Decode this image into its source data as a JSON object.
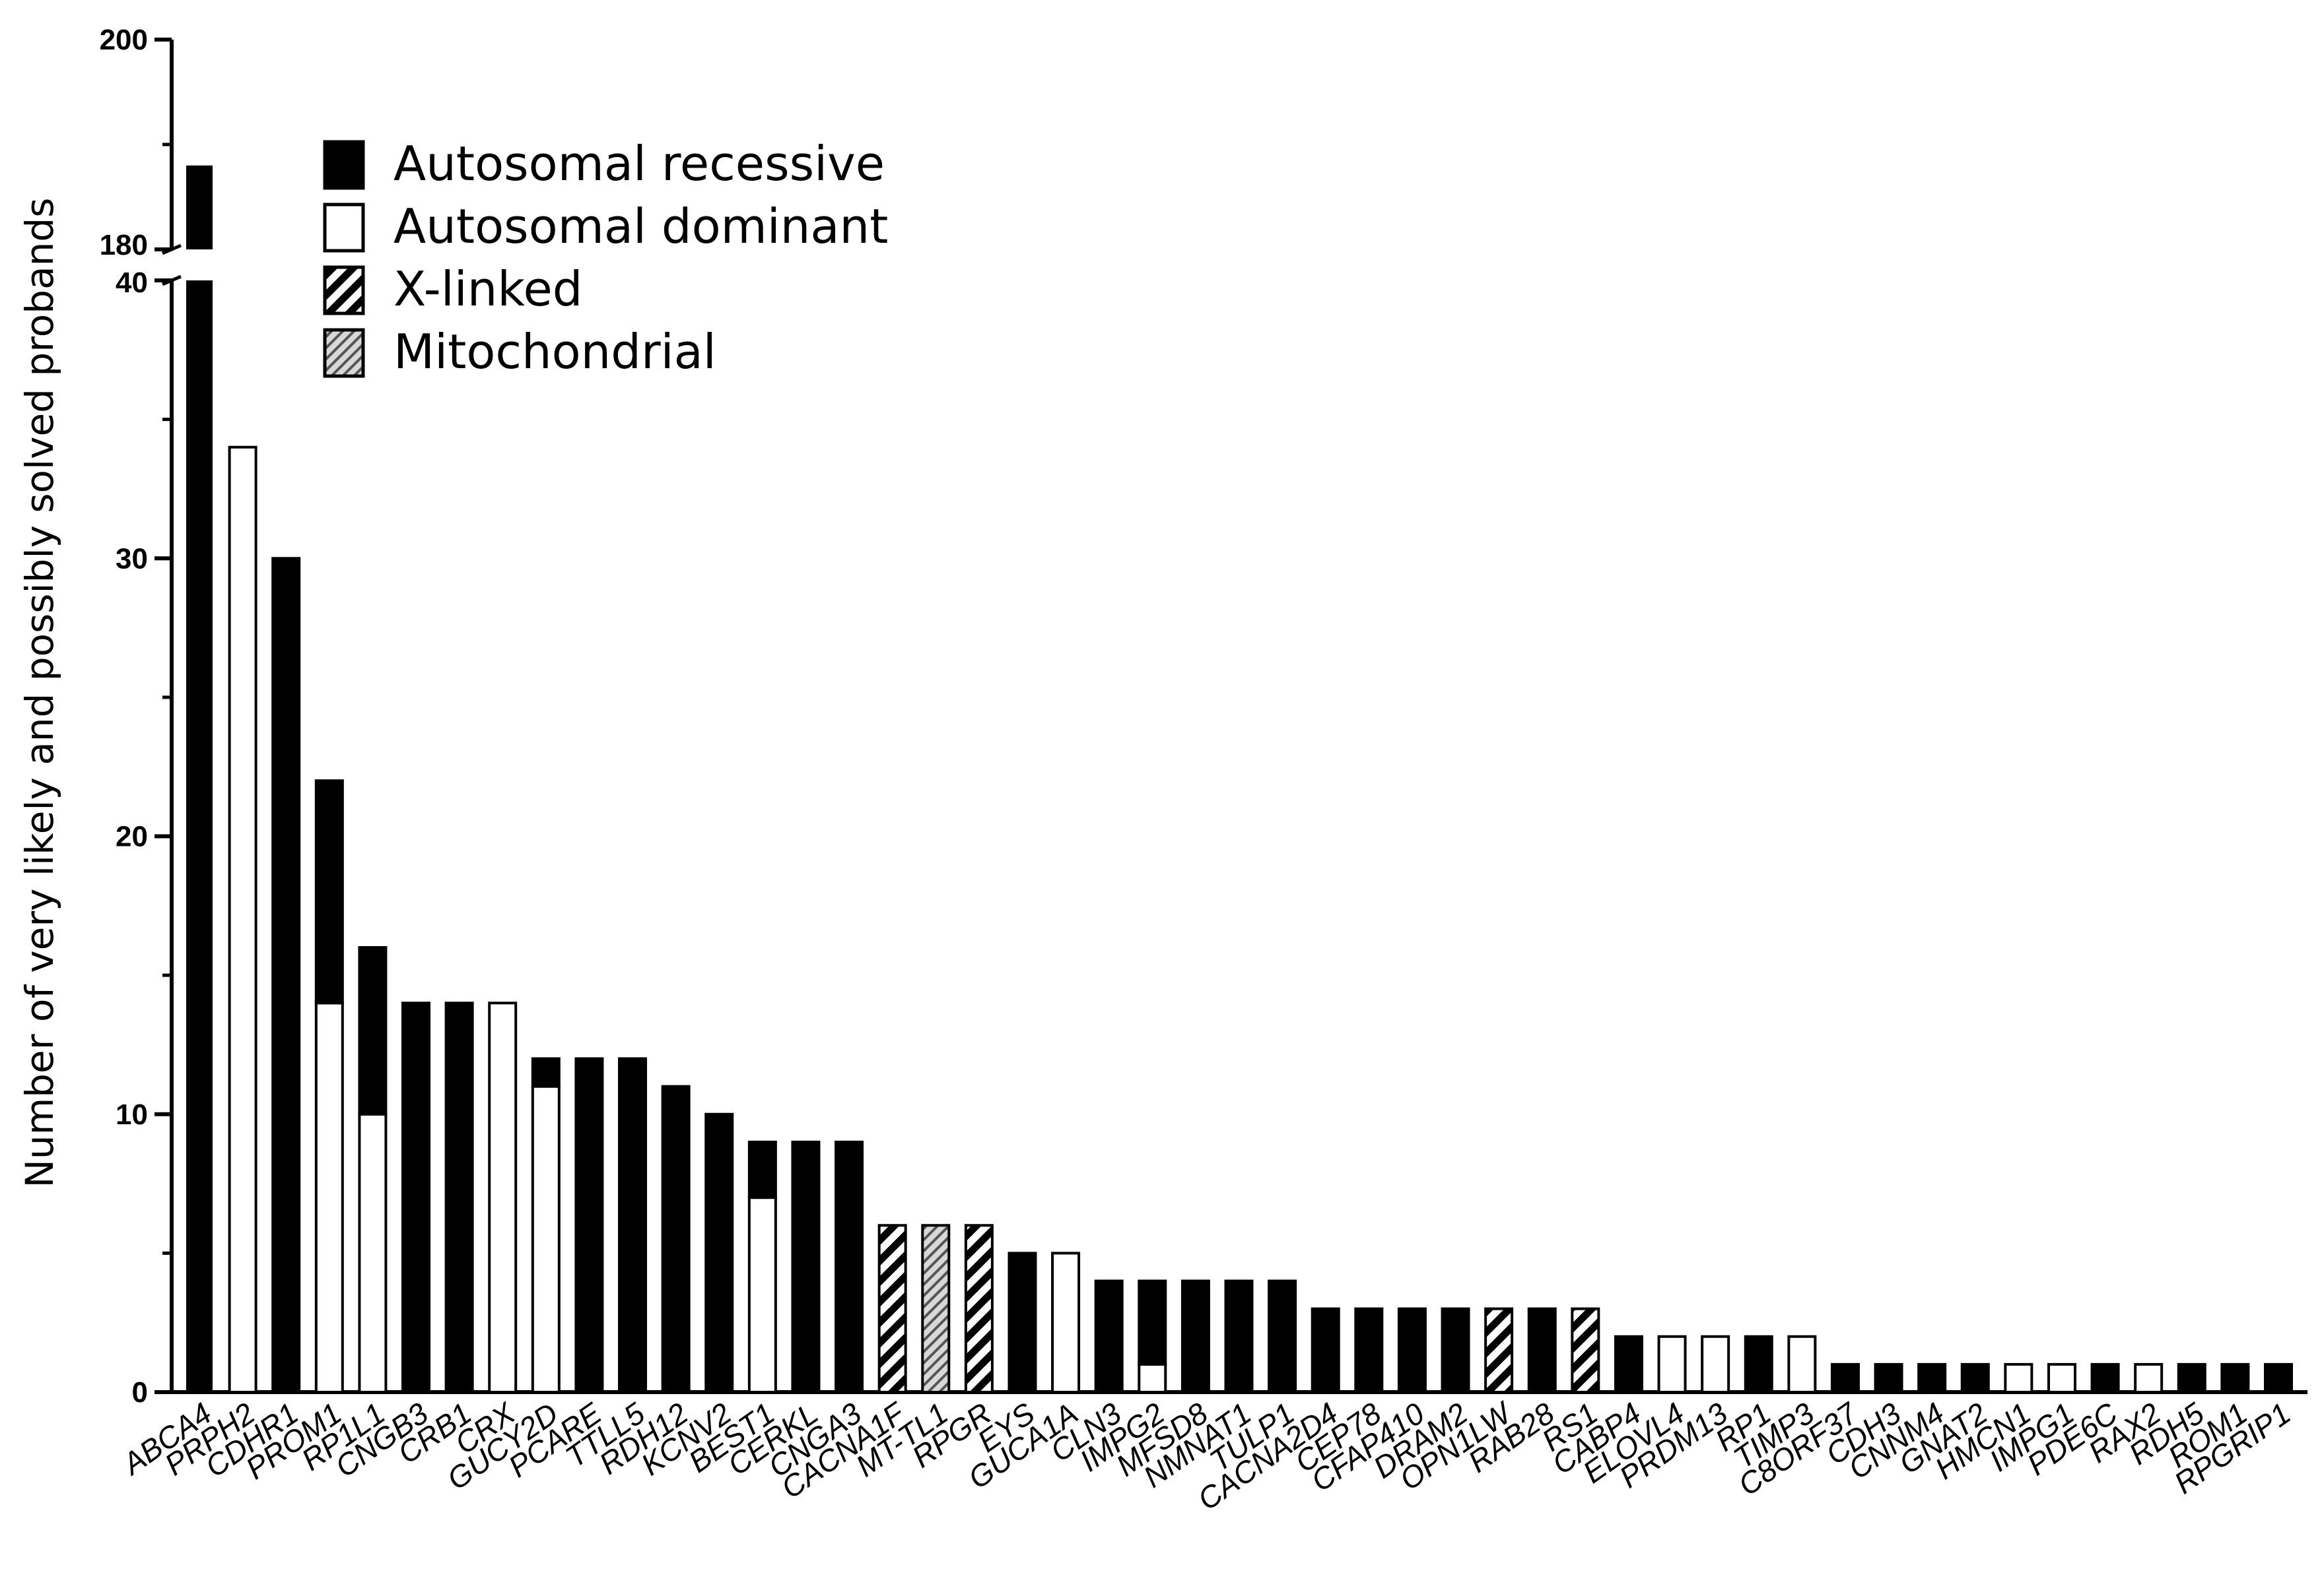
{
  "chart_data": {
    "type": "bar",
    "stacked": true,
    "ylabel": "Number of very likely and possibly solved probands",
    "xlabel": "",
    "y_axis_break": {
      "lower_range": [
        0,
        40
      ],
      "upper_range": [
        180,
        200
      ]
    },
    "y_ticks_lower": [
      "0",
      "10",
      "20",
      "30",
      "40"
    ],
    "y_ticks_upper": [
      "180",
      "200"
    ],
    "legend_placement": "top-left",
    "legend": [
      {
        "key": "ar",
        "label": "Autosomal recessive",
        "fill": "#000000"
      },
      {
        "key": "ad",
        "label": "Autosomal dominant",
        "fill": "#ffffff"
      },
      {
        "key": "xl",
        "label": "X-linked",
        "fill": "hatch-black"
      },
      {
        "key": "mt",
        "label": "Mitochondrial",
        "fill": "hatch-gray"
      }
    ],
    "categories": [
      "ABCA4",
      "PRPH2",
      "CDHR1",
      "PROM1",
      "RP1L1",
      "CNGB3",
      "CRB1",
      "CRX",
      "GUCY2D",
      "PCARE",
      "TTLL5",
      "RDH12",
      "KCNV2",
      "BEST1",
      "CERKL",
      "CNGA3",
      "CACNA1F",
      "MT-TL1",
      "RPGR",
      "EYS",
      "GUCA1A",
      "CLN3",
      "IMPG2",
      "MFSD8",
      "NMNAT1",
      "TULP1",
      "CACNA2D4",
      "CEP78",
      "CFAP410",
      "DRAM2",
      "OPN1LW",
      "RAB28",
      "RS1",
      "CABP4",
      "ELOVL4",
      "PRDM13",
      "RP1",
      "TIMP3",
      "C8ORF37",
      "CDH3",
      "CNNM4",
      "GNAT2",
      "HMCN1",
      "IMPG1",
      "PDE6C",
      "RAX2",
      "RDH5",
      "ROM1",
      "RPGRIP1"
    ],
    "series": [
      {
        "key": "ad",
        "values": [
          0,
          34,
          0,
          14,
          10,
          0,
          0,
          14,
          11,
          0,
          0,
          0,
          0,
          7,
          0,
          0,
          0,
          0,
          0,
          0,
          5,
          0,
          1,
          0,
          0,
          0,
          0,
          0,
          0,
          0,
          0,
          0,
          0,
          0,
          2,
          2,
          0,
          2,
          0,
          0,
          0,
          0,
          1,
          1,
          0,
          1,
          0,
          0,
          0
        ]
      },
      {
        "key": "ar",
        "values": [
          188,
          0,
          30,
          8,
          6,
          14,
          14,
          0,
          1,
          12,
          12,
          11,
          10,
          2,
          9,
          9,
          0,
          0,
          0,
          5,
          0,
          4,
          3,
          4,
          4,
          4,
          3,
          3,
          3,
          3,
          0,
          3,
          0,
          2,
          0,
          0,
          2,
          0,
          1,
          1,
          1,
          1,
          0,
          0,
          1,
          0,
          1,
          1,
          1
        ]
      },
      {
        "key": "xl",
        "values": [
          0,
          0,
          0,
          0,
          0,
          0,
          0,
          0,
          0,
          0,
          0,
          0,
          0,
          0,
          0,
          0,
          6,
          0,
          6,
          0,
          0,
          0,
          0,
          0,
          0,
          0,
          0,
          0,
          0,
          0,
          3,
          0,
          3,
          0,
          0,
          0,
          0,
          0,
          0,
          0,
          0,
          0,
          0,
          0,
          0,
          0,
          0,
          0,
          0
        ]
      },
      {
        "key": "mt",
        "values": [
          0,
          0,
          0,
          0,
          0,
          0,
          0,
          0,
          0,
          0,
          0,
          0,
          0,
          0,
          0,
          0,
          0,
          6,
          0,
          0,
          0,
          0,
          0,
          0,
          0,
          0,
          0,
          0,
          0,
          0,
          0,
          0,
          0,
          0,
          0,
          0,
          0,
          0,
          0,
          0,
          0,
          0,
          0,
          0,
          0,
          0,
          0,
          0,
          0
        ]
      }
    ]
  }
}
